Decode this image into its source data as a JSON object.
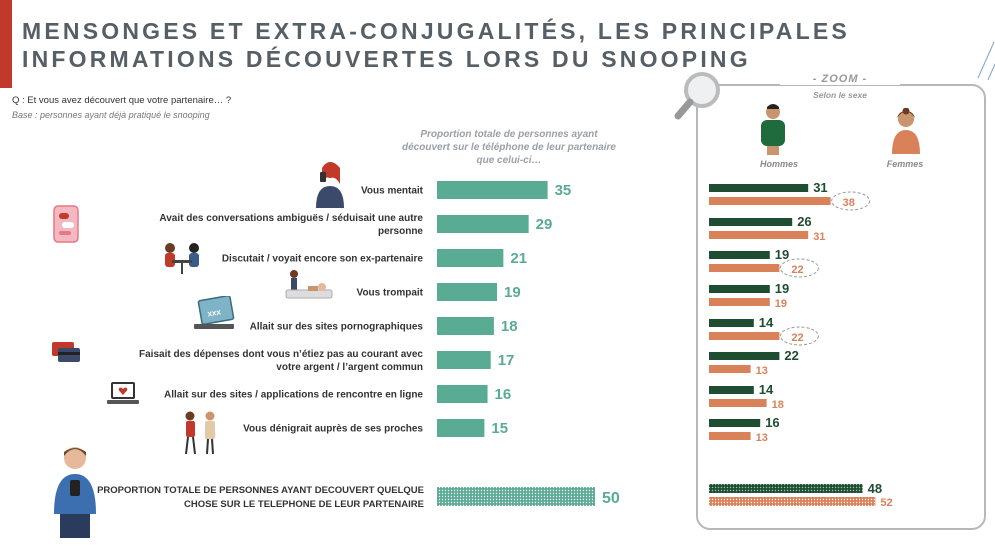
{
  "title": {
    "line1": "MENSONGES ET EXTRA-CONJUGALITÉS, LES PRINCIPALES",
    "line2": "INFORMATIONS DÉCOUVERTES LORS DU SNOOPING"
  },
  "question": "Q : Et vous avez découvert que votre partenaire… ?",
  "base": "Base : personnes ayant déjà pratiqué le snooping",
  "column_header": "Proportion totale de personnes ayant découvert sur le téléphone de leur partenaire que celui-ci…",
  "zoom": {
    "label": "- ZOOM -",
    "sublabel": "Selon le sexe",
    "men_label": "Hommes",
    "women_label": "Femmes"
  },
  "total_label": "PROPORTION TOTALE DE PERSONNES AYANT DECOUVERT QUELQUE CHOSE SUR LE TELEPHONE DE LEUR PARTENAIRE",
  "colors": {
    "teal": "#5aab94",
    "men": "#1f4d31",
    "women": "#d9825a",
    "title": "#565f66",
    "accent": "#c0392b"
  },
  "icons": [
    "woman-phone-icon",
    "phone-chat-icon",
    "couple-dinner-icon",
    "couple-bed-icon",
    "laptop-xxx-icon",
    "credit-cards-icon",
    "laptop-heart-icon",
    "gossip-couple-icon",
    "man-phone-icon",
    "magnifier-icon",
    "man-avatar-icon",
    "woman-avatar-icon"
  ],
  "chart_data": [
    {
      "type": "bar",
      "orientation": "horizontal",
      "categories": [
        "Vous mentait",
        "Avait des conversations ambiguës / séduisait une autre personne",
        "Discutait / voyait encore son ex-partenaire",
        "Vous trompait",
        "Allait sur des sites pornographiques",
        "Faisait des dépenses dont vous n’étiez pas au courant avec votre argent / l’argent commun",
        "Allait sur des sites / applications de rencontre en ligne",
        "Vous dénigrait auprès de ses proches"
      ],
      "values": [
        35,
        29,
        21,
        19,
        18,
        17,
        16,
        15
      ],
      "total": 50
    },
    {
      "type": "bar",
      "orientation": "horizontal",
      "series": [
        {
          "name": "Hommes",
          "values": [
            31,
            26,
            19,
            19,
            14,
            22,
            14,
            16
          ],
          "total": 48
        },
        {
          "name": "Femmes",
          "values": [
            38,
            31,
            22,
            19,
            22,
            13,
            18,
            13
          ],
          "total": 52
        }
      ],
      "highlighted": [
        "Femmes 38",
        "Femmes 22"
      ]
    }
  ]
}
